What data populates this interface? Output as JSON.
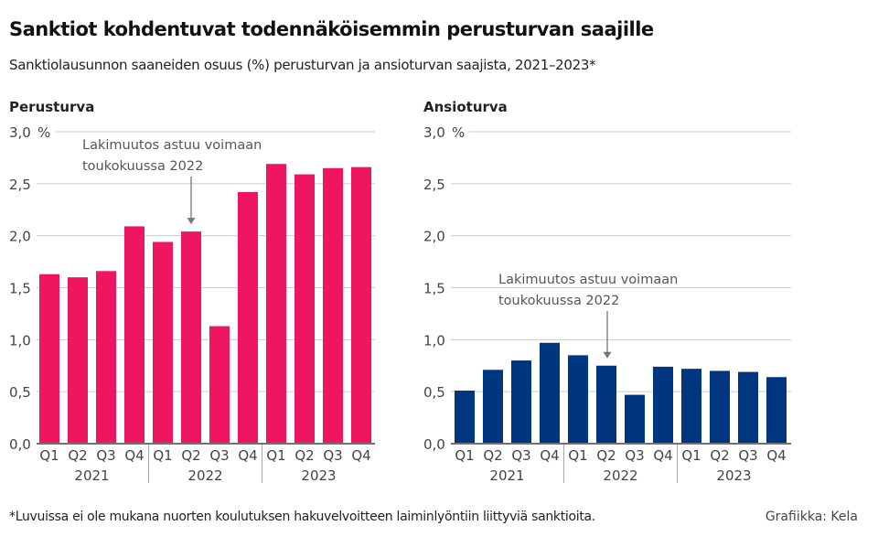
{
  "title": "Sanktiot kohdentuvat todennäköisemmin perusturvan saajille",
  "subtitle": "Sanktiolausunnon saaneiden osuus (%) perusturvan ja ansioturvan saajista, 2021–2023*",
  "footnote": "*Luvuissa ei ole mukana nuorten koulutuksen hakuvelvoitteen laiminlyöntiin liittyviä sanktioita.",
  "credit": "Grafiikka: Kela",
  "chart_data": [
    {
      "type": "bar",
      "title": "Perusturva",
      "unit": "%",
      "color": "#EE1660",
      "categories": [
        "Q1",
        "Q2",
        "Q3",
        "Q4",
        "Q1",
        "Q2",
        "Q3",
        "Q4",
        "Q1",
        "Q2",
        "Q3",
        "Q4"
      ],
      "groups": [
        "2021",
        "2022",
        "2023"
      ],
      "values": [
        1.63,
        1.6,
        1.66,
        2.09,
        1.94,
        2.04,
        1.13,
        2.42,
        2.69,
        2.59,
        2.65,
        2.66
      ],
      "ylim": [
        0,
        3
      ],
      "yticks": [
        "0,0",
        "0,5",
        "1,0",
        "1,5",
        "2,0",
        "2,5",
        "3,0"
      ],
      "grid": true,
      "annotation": {
        "lines": [
          "Lakimuutos astuu voimaan",
          "toukokuussa 2022"
        ],
        "target_index": 5
      }
    },
    {
      "type": "bar",
      "title": "Ansioturva",
      "unit": "%",
      "color": "#00357F",
      "categories": [
        "Q1",
        "Q2",
        "Q3",
        "Q4",
        "Q1",
        "Q2",
        "Q3",
        "Q4",
        "Q1",
        "Q2",
        "Q3",
        "Q4"
      ],
      "groups": [
        "2021",
        "2022",
        "2023"
      ],
      "values": [
        0.51,
        0.71,
        0.8,
        0.97,
        0.85,
        0.75,
        0.47,
        0.74,
        0.72,
        0.7,
        0.69,
        0.64
      ],
      "ylim": [
        0,
        3
      ],
      "yticks": [
        "0,0",
        "0,5",
        "1,0",
        "1,5",
        "2,0",
        "2,5",
        "3,0"
      ],
      "grid": true,
      "annotation": {
        "lines": [
          "Lakimuutos astuu voimaan",
          "toukokuussa 2022"
        ],
        "target_index": 5
      }
    }
  ]
}
